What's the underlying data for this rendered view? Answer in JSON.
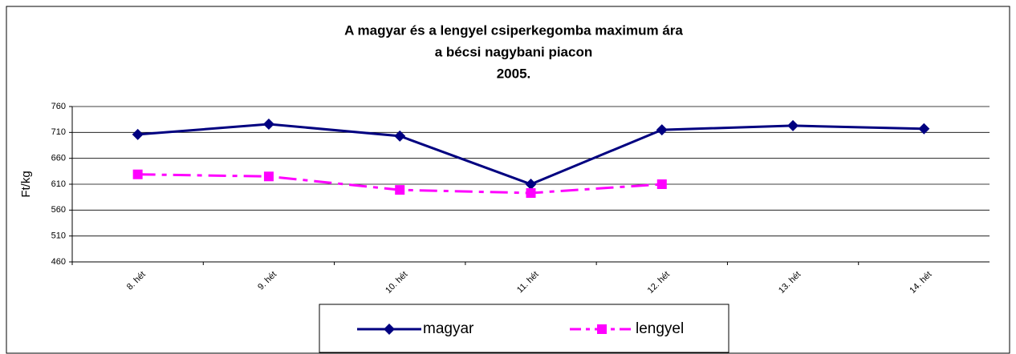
{
  "chart_data": {
    "type": "line",
    "title": [
      "A magyar és a lengyel csiperkegomba maximum ára",
      "a bécsi nagybani piacon",
      "2005."
    ],
    "y_label": "Ft/kg",
    "categories": [
      "8. hét",
      "9. hét",
      "10. hét",
      "11. hét",
      "12. hét",
      "13. hét",
      "14. hét"
    ],
    "series": [
      {
        "name": "magyar",
        "color": "#000080",
        "marker": "diamond",
        "dash": "solid",
        "values": [
          706,
          726,
          703,
          610,
          715,
          723,
          717
        ]
      },
      {
        "name": "lengyel",
        "color": "#ff00ff",
        "marker": "square",
        "dash": "dash-dot",
        "values": [
          629,
          625,
          599,
          593,
          610,
          null,
          null
        ]
      }
    ],
    "ylim": [
      460,
      760
    ],
    "yticks": [
      460,
      510,
      560,
      610,
      660,
      710,
      760
    ],
    "grid": true
  }
}
